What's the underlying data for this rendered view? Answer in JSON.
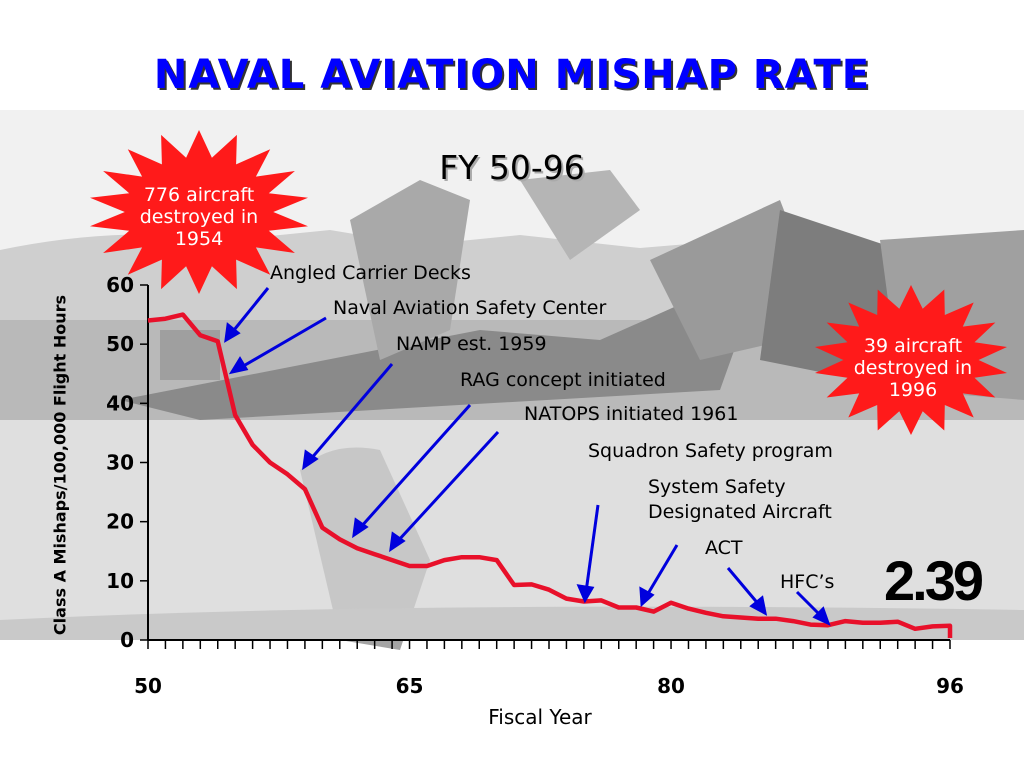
{
  "slide": {
    "title": "NAVAL AVIATION MISHAP RATE",
    "subtitle": "FY 50-96",
    "current_rate": "2.39",
    "burst_left": {
      "line1": "776 aircraft",
      "line2": "destroyed in",
      "line3": "1954",
      "color": "#ff1a1a"
    },
    "burst_right": {
      "line1": "39 aircraft",
      "line2": "destroyed in",
      "line3": "1996",
      "color": "#ff1a1a"
    }
  },
  "chart_data": {
    "type": "line",
    "xlabel": "Fiscal Year",
    "ylabel": "Class A Mishaps/100,000 Flight Hours",
    "xlim": [
      50,
      96
    ],
    "ylim": [
      0,
      60
    ],
    "x_tick_labels": [
      "50",
      "65",
      "80",
      "96"
    ],
    "x_tick_values": [
      50,
      65,
      80,
      96
    ],
    "y_tick_labels": [
      "0",
      "10",
      "20",
      "30",
      "40",
      "50",
      "60"
    ],
    "y_tick_values": [
      0,
      10,
      20,
      30,
      40,
      50,
      60
    ],
    "line_color": "#e8102a",
    "series": [
      {
        "x": [
          50,
          51,
          52,
          53,
          54,
          55,
          56,
          57,
          58,
          59,
          60,
          61,
          62,
          63,
          64,
          65,
          66,
          67,
          68,
          69,
          70,
          71,
          72,
          73,
          74,
          75,
          76,
          77,
          78,
          79,
          80,
          81,
          82,
          83,
          84,
          85,
          86,
          87,
          88,
          89,
          90,
          91,
          92,
          93,
          94,
          95,
          96
        ],
        "values": [
          54,
          54.3,
          55,
          51.5,
          50.5,
          38,
          33,
          30,
          28,
          25.5,
          19,
          17,
          15.5,
          14.5,
          13.5,
          12.5,
          12.5,
          13.5,
          14,
          14,
          13.5,
          9.3,
          9.4,
          8.5,
          7,
          6.5,
          6.7,
          5.5,
          5.5,
          4.8,
          6.3,
          5.3,
          4.6,
          4,
          3.8,
          3.6,
          3.6,
          3.2,
          2.6,
          2.5,
          3.2,
          2.9,
          2.9,
          3.1,
          1.9,
          2.3,
          2.4
        ]
      }
    ],
    "annotations": [
      {
        "label": "Angled Carrier Decks",
        "year": 54.5,
        "value": 51
      },
      {
        "label": "Naval Aviation Safety Center",
        "year": 55,
        "value": 45
      },
      {
        "label": "NAMP est. 1959",
        "year": 59,
        "value": 29
      },
      {
        "label": "RAG concept initiated",
        "year": 62,
        "value": 18
      },
      {
        "label": "NATOPS initiated 1961",
        "year": 64.5,
        "value": 15
      },
      {
        "label": "Squadron Safety program",
        "year": 75.5,
        "value": 7
      },
      {
        "label": "System Safety",
        "year": 79,
        "value": 6
      },
      {
        "label": "Designated Aircraft",
        "year": 79,
        "value": 6
      },
      {
        "label": "ACT",
        "year": 85.5,
        "value": 4.5
      },
      {
        "label": "HFC’s",
        "year": 89,
        "value": 3
      }
    ]
  }
}
